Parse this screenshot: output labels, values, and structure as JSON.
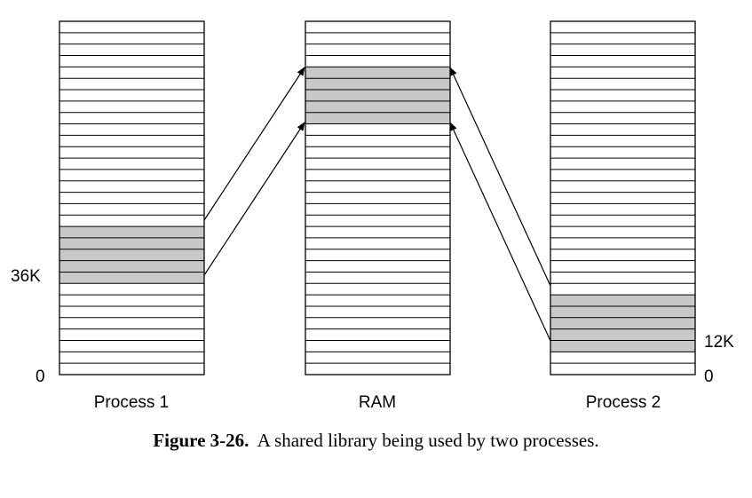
{
  "diagram": {
    "columns": [
      {
        "id": "process1",
        "label": "Process 1",
        "rows": 31,
        "shaded_from_top": 18,
        "shaded_count": 5
      },
      {
        "id": "ram",
        "label": "RAM",
        "rows": 31,
        "shaded_from_top": 4,
        "shaded_count": 5
      },
      {
        "id": "process2",
        "label": "Process 2",
        "rows": 31,
        "shaded_from_top": 24,
        "shaded_count": 5
      }
    ],
    "left_axis": {
      "top_label": "36K",
      "bottom_label": "0"
    },
    "right_axis": {
      "top_label": "12K",
      "bottom_label": "0"
    },
    "colors": {
      "shaded": "#c8c8c8",
      "line": "#000000"
    }
  },
  "caption": {
    "label": "Figure 3-26.",
    "text": "A shared library being used by two processes."
  }
}
